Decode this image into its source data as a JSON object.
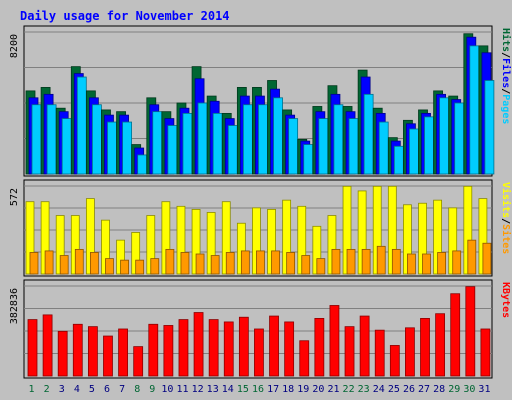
{
  "title": "Daily usage for November 2014",
  "colors": {
    "background": "#c0c0c0",
    "panel": "#c0c0c0",
    "title": "#0000ff",
    "hits": "#006633",
    "files": "#0000ff",
    "pages": "#00ccff",
    "visits": "#ffff00",
    "sites": "#ff9900",
    "kbytes": "#ff0000",
    "grid": "#808080",
    "weekend_label": "#006633",
    "weekday_label": "#000080"
  },
  "chart_data": [
    {
      "type": "bar",
      "panel": "hits-files-pages",
      "ytick": "8200",
      "ymax": 8200,
      "legend": [
        {
          "name": "Pages",
          "color": "#00ccff"
        },
        {
          "name": "Files",
          "color": "#0000ff"
        },
        {
          "name": "Hits",
          "color": "#006633"
        }
      ],
      "categories": [
        "1",
        "2",
        "3",
        "4",
        "5",
        "6",
        "7",
        "8",
        "9",
        "10",
        "11",
        "12",
        "13",
        "14",
        "15",
        "16",
        "17",
        "18",
        "19",
        "20",
        "21",
        "22",
        "23",
        "24",
        "25",
        "26",
        "27",
        "28",
        "29",
        "30",
        "31"
      ],
      "series": [
        {
          "name": "Hits",
          "values": [
            4800,
            5000,
            3800,
            6200,
            4800,
            3700,
            3600,
            1700,
            4400,
            3600,
            4100,
            6200,
            4500,
            3500,
            5000,
            5000,
            5400,
            3700,
            2000,
            3900,
            5100,
            3900,
            6000,
            3800,
            2100,
            3100,
            3700,
            4800,
            4500,
            8100,
            7400
          ]
        },
        {
          "name": "Files",
          "values": [
            4400,
            4600,
            3600,
            5800,
            4400,
            3400,
            3400,
            1500,
            4000,
            3200,
            3800,
            5500,
            4200,
            3200,
            4500,
            4500,
            4900,
            3400,
            1900,
            3600,
            4600,
            3600,
            5600,
            3500,
            1900,
            2900,
            3500,
            4600,
            4300,
            7900,
            7000
          ]
        },
        {
          "name": "Pages",
          "values": [
            4000,
            4000,
            3200,
            5600,
            4000,
            3000,
            3000,
            1100,
            3600,
            2800,
            3500,
            4100,
            3500,
            2800,
            4000,
            4000,
            4400,
            3200,
            1700,
            3200,
            4000,
            3200,
            4600,
            3000,
            1600,
            2600,
            3300,
            4400,
            4100,
            7400,
            5400
          ]
        }
      ]
    },
    {
      "type": "bar",
      "panel": "visits-sites",
      "ytick": "572",
      "ymax": 572,
      "legend": [
        {
          "name": "Sites",
          "color": "#ff9900"
        },
        {
          "name": "Visits",
          "color": "#ffff00"
        }
      ],
      "categories": [
        "1",
        "2",
        "3",
        "4",
        "5",
        "6",
        "7",
        "8",
        "9",
        "10",
        "11",
        "12",
        "13",
        "14",
        "15",
        "16",
        "17",
        "18",
        "19",
        "20",
        "21",
        "22",
        "23",
        "24",
        "25",
        "26",
        "27",
        "28",
        "29",
        "30",
        "31"
      ],
      "series": [
        {
          "name": "Visits",
          "values": [
            470,
            470,
            380,
            380,
            490,
            350,
            220,
            270,
            380,
            470,
            440,
            420,
            400,
            470,
            330,
            430,
            420,
            480,
            440,
            310,
            380,
            570,
            540,
            570,
            570,
            450,
            460,
            480,
            430,
            570,
            490
          ]
        },
        {
          "name": "Sites",
          "values": [
            140,
            150,
            120,
            160,
            140,
            100,
            90,
            90,
            100,
            160,
            140,
            130,
            120,
            140,
            150,
            150,
            150,
            140,
            120,
            100,
            160,
            160,
            160,
            180,
            160,
            130,
            130,
            140,
            150,
            220,
            200
          ]
        }
      ]
    },
    {
      "type": "bar",
      "panel": "kbytes",
      "ytick": "382836",
      "ymax": 382836,
      "legend": [
        {
          "name": "KBytes",
          "color": "#ff0000"
        }
      ],
      "categories": [
        "1",
        "2",
        "3",
        "4",
        "5",
        "6",
        "7",
        "8",
        "9",
        "10",
        "11",
        "12",
        "13",
        "14",
        "15",
        "16",
        "17",
        "18",
        "19",
        "20",
        "21",
        "22",
        "23",
        "24",
        "25",
        "26",
        "27",
        "28",
        "29",
        "30",
        "31"
      ],
      "series": [
        {
          "name": "KBytes",
          "values": [
            240000,
            260000,
            190000,
            220000,
            210000,
            170000,
            200000,
            125000,
            220000,
            215000,
            240000,
            270000,
            240000,
            230000,
            250000,
            200000,
            255000,
            230000,
            150000,
            245000,
            300000,
            210000,
            255000,
            195000,
            130000,
            205000,
            245000,
            265000,
            350000,
            380000,
            200000
          ]
        }
      ]
    }
  ],
  "weekend_days": [
    "1",
    "2",
    "8",
    "9",
    "15",
    "16",
    "22",
    "23",
    "29",
    "30"
  ]
}
